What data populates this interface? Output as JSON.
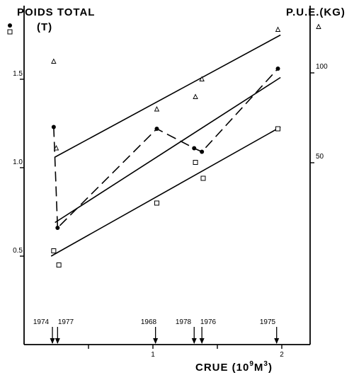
{
  "chart_data": {
    "type": "scatter",
    "title": "",
    "xlabel": "CRUE (10",
    "xlabel_exp": "9",
    "xlabel_unit": "M",
    "xlabel_unit_exp": "3",
    "xlabel_close": ")",
    "ylabel_left": "POIDS TOTAL",
    "ylabel_left_unit": "(T)",
    "ylabel_right": "P.U.E.(KG)",
    "xlim": [
      0,
      2.2
    ],
    "ylim_left": [
      0,
      1.9
    ],
    "ylim_right": [
      0,
      142.5
    ],
    "x_ticks": [
      0.5,
      1,
      1.5,
      2
    ],
    "x_tick_labels": [
      "",
      "1",
      "",
      "2"
    ],
    "y_left_ticks": [
      0.5,
      1.0,
      1.5
    ],
    "y_left_tick_labels": [
      "0.5",
      "1.0",
      "1.5"
    ],
    "y_right_ticks": [
      50,
      100
    ],
    "y_right_tick_labels": [
      "50",
      "100"
    ],
    "grid": false,
    "year_markers": [
      {
        "year": "1974",
        "x": 0.22
      },
      {
        "year": "1977",
        "x": 0.26
      },
      {
        "year": "1968",
        "x": 1.02
      },
      {
        "year": "1978",
        "x": 1.32
      },
      {
        "year": "1976",
        "x": 1.38
      },
      {
        "year": "1975",
        "x": 1.96
      }
    ],
    "series": [
      {
        "marker": "filled-circle",
        "line_style": "dashed",
        "axis": "left",
        "x": [
          0.23,
          0.26,
          1.03,
          1.32,
          1.38,
          1.97
        ],
        "y": [
          1.23,
          0.66,
          1.22,
          1.11,
          1.09,
          1.56
        ]
      },
      {
        "marker": "triangle",
        "line_style": "none",
        "axis": "left",
        "x": [
          0.23,
          0.25,
          1.03,
          1.33,
          1.38,
          1.97
        ],
        "y": [
          1.6,
          1.11,
          1.33,
          1.4,
          1.5,
          1.78
        ]
      },
      {
        "marker": "square",
        "line_style": "none",
        "axis": "left",
        "x": [
          0.23,
          0.27,
          1.03,
          1.33,
          1.39,
          1.97
        ],
        "y": [
          0.53,
          0.45,
          0.8,
          1.03,
          0.94,
          1.22
        ]
      }
    ],
    "regression_lines": [
      {
        "x": [
          0.24,
          1.99
        ],
        "y": [
          1.06,
          1.75
        ]
      },
      {
        "x": [
          0.24,
          1.99
        ],
        "y": [
          0.69,
          1.51
        ]
      },
      {
        "x": [
          0.21,
          1.99
        ],
        "y": [
          0.5,
          1.23
        ]
      }
    ],
    "legend_markers": [
      {
        "marker": "filled-circle",
        "position": "top-left"
      },
      {
        "marker": "square",
        "position": "top-left"
      },
      {
        "marker": "triangle",
        "position": "top-right"
      }
    ]
  }
}
